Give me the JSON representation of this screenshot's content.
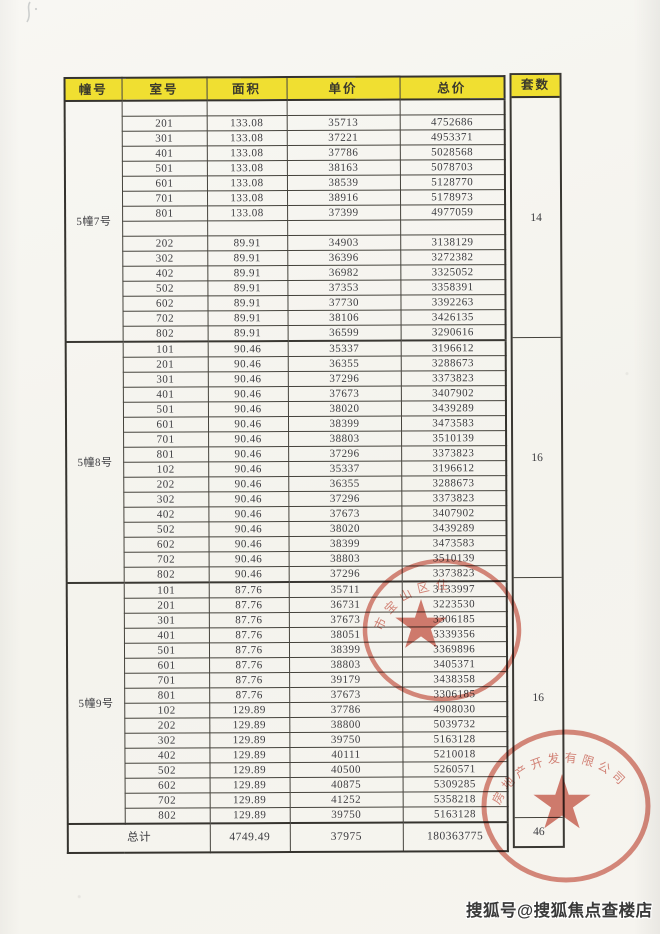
{
  "page": {
    "background_color": "#f5f4ee",
    "header_bg_color": "#f0df31",
    "border_color": "#3a3833",
    "seal_color": "#c23b2a"
  },
  "watermark": {
    "text": "搜狐号@搜狐焦点查楼店"
  },
  "stamps": [
    {
      "name": "seal-1",
      "arc_text": "市宝山区住",
      "color": "#c23b2a"
    },
    {
      "name": "seal-2",
      "arc_text": "房地产开发有限公司",
      "color": "#c23b2a"
    }
  ],
  "table": {
    "headers": {
      "building": "幢号",
      "room": "室号",
      "area": "面积",
      "unit_price": "单价",
      "total_price": "总价",
      "units": "套数"
    },
    "sections": [
      {
        "building": "5幢7号",
        "units": "14",
        "rows": [
          {
            "room": "",
            "area": "",
            "unit_price": "",
            "total_price": ""
          },
          {
            "room": "201",
            "area": "133.08",
            "unit_price": "35713",
            "total_price": "4752686"
          },
          {
            "room": "301",
            "area": "133.08",
            "unit_price": "37221",
            "total_price": "4953371"
          },
          {
            "room": "401",
            "area": "133.08",
            "unit_price": "37786",
            "total_price": "5028568"
          },
          {
            "room": "501",
            "area": "133.08",
            "unit_price": "38163",
            "total_price": "5078703"
          },
          {
            "room": "601",
            "area": "133.08",
            "unit_price": "38539",
            "total_price": "5128770"
          },
          {
            "room": "701",
            "area": "133.08",
            "unit_price": "38916",
            "total_price": "5178973"
          },
          {
            "room": "801",
            "area": "133.08",
            "unit_price": "37399",
            "total_price": "4977059"
          },
          {
            "room": "",
            "area": "",
            "unit_price": "",
            "total_price": ""
          },
          {
            "room": "202",
            "area": "89.91",
            "unit_price": "34903",
            "total_price": "3138129"
          },
          {
            "room": "302",
            "area": "89.91",
            "unit_price": "36396",
            "total_price": "3272382"
          },
          {
            "room": "402",
            "area": "89.91",
            "unit_price": "36982",
            "total_price": "3325052"
          },
          {
            "room": "502",
            "area": "89.91",
            "unit_price": "37353",
            "total_price": "3358391"
          },
          {
            "room": "602",
            "area": "89.91",
            "unit_price": "37730",
            "total_price": "3392263"
          },
          {
            "room": "702",
            "area": "89.91",
            "unit_price": "38106",
            "total_price": "3426135"
          },
          {
            "room": "802",
            "area": "89.91",
            "unit_price": "36599",
            "total_price": "3290616"
          }
        ]
      },
      {
        "building": "5幢8号",
        "units": "16",
        "rows": [
          {
            "room": "101",
            "area": "90.46",
            "unit_price": "35337",
            "total_price": "3196612"
          },
          {
            "room": "201",
            "area": "90.46",
            "unit_price": "36355",
            "total_price": "3288673"
          },
          {
            "room": "301",
            "area": "90.46",
            "unit_price": "37296",
            "total_price": "3373823"
          },
          {
            "room": "401",
            "area": "90.46",
            "unit_price": "37673",
            "total_price": "3407902"
          },
          {
            "room": "501",
            "area": "90.46",
            "unit_price": "38020",
            "total_price": "3439289"
          },
          {
            "room": "601",
            "area": "90.46",
            "unit_price": "38399",
            "total_price": "3473583"
          },
          {
            "room": "701",
            "area": "90.46",
            "unit_price": "38803",
            "total_price": "3510139"
          },
          {
            "room": "801",
            "area": "90.46",
            "unit_price": "37296",
            "total_price": "3373823"
          },
          {
            "room": "102",
            "area": "90.46",
            "unit_price": "35337",
            "total_price": "3196612"
          },
          {
            "room": "202",
            "area": "90.46",
            "unit_price": "36355",
            "total_price": "3288673"
          },
          {
            "room": "302",
            "area": "90.46",
            "unit_price": "37296",
            "total_price": "3373823"
          },
          {
            "room": "402",
            "area": "90.46",
            "unit_price": "37673",
            "total_price": "3407902"
          },
          {
            "room": "502",
            "area": "90.46",
            "unit_price": "38020",
            "total_price": "3439289"
          },
          {
            "room": "602",
            "area": "90.46",
            "unit_price": "38399",
            "total_price": "3473583"
          },
          {
            "room": "702",
            "area": "90.46",
            "unit_price": "38803",
            "total_price": "3510139"
          },
          {
            "room": "802",
            "area": "90.46",
            "unit_price": "37296",
            "total_price": "3373823"
          }
        ]
      },
      {
        "building": "5幢9号",
        "units": "16",
        "rows": [
          {
            "room": "101",
            "area": "87.76",
            "unit_price": "35711",
            "total_price": "3133997"
          },
          {
            "room": "201",
            "area": "87.76",
            "unit_price": "36731",
            "total_price": "3223530"
          },
          {
            "room": "301",
            "area": "87.76",
            "unit_price": "37673",
            "total_price": "3306185"
          },
          {
            "room": "401",
            "area": "87.76",
            "unit_price": "38051",
            "total_price": "3339356"
          },
          {
            "room": "501",
            "area": "87.76",
            "unit_price": "38399",
            "total_price": "3369896"
          },
          {
            "room": "601",
            "area": "87.76",
            "unit_price": "38803",
            "total_price": "3405371"
          },
          {
            "room": "701",
            "area": "87.76",
            "unit_price": "39179",
            "total_price": "3438358"
          },
          {
            "room": "801",
            "area": "87.76",
            "unit_price": "37673",
            "total_price": "3306185"
          },
          {
            "room": "102",
            "area": "129.89",
            "unit_price": "37786",
            "total_price": "4908030"
          },
          {
            "room": "202",
            "area": "129.89",
            "unit_price": "38800",
            "total_price": "5039732"
          },
          {
            "room": "302",
            "area": "129.89",
            "unit_price": "39750",
            "total_price": "5163128"
          },
          {
            "room": "402",
            "area": "129.89",
            "unit_price": "40111",
            "total_price": "5210018"
          },
          {
            "room": "502",
            "area": "129.89",
            "unit_price": "40500",
            "total_price": "5260571"
          },
          {
            "room": "602",
            "area": "129.89",
            "unit_price": "40875",
            "total_price": "5309285"
          },
          {
            "room": "702",
            "area": "129.89",
            "unit_price": "41252",
            "total_price": "5358218"
          },
          {
            "room": "802",
            "area": "129.89",
            "unit_price": "39750",
            "total_price": "5163128"
          }
        ]
      }
    ],
    "total": {
      "label": "总计",
      "area": "4749.49",
      "unit_price": "37975",
      "total_price": "180363775",
      "units": "46"
    }
  }
}
